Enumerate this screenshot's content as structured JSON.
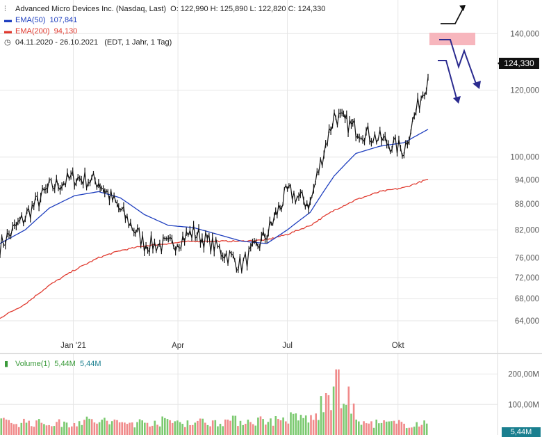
{
  "header": {
    "title": "Advanced Micro Devices Inc. (Nasdaq, Last)",
    "ohlc": "O: 122,990  H: 125,890  L: 122,820  C: 124,330",
    "ema50_label": "EMA(50)",
    "ema50_value": "107,841",
    "ema200_label": "EMA(200)",
    "ema200_value": "94,130",
    "range": "04.11.2020 - 26.10.2021",
    "range_note": "(EDT, 1 Jahr, 1 Tag)",
    "last_price": "124,330"
  },
  "volume_header": {
    "label": "Volume(1)",
    "value1": "5,44M",
    "value2": "5,44M",
    "last_tag": "5,44M"
  },
  "colors": {
    "price": "#111111",
    "ema50": "#1f3fbf",
    "ema200": "#e03a2f",
    "vol_up": "#7bc96f",
    "vol_down": "#f08a8a",
    "grid": "#e6e6e6",
    "arrow": "#2b2b8f",
    "zone": "#f7b6bd"
  },
  "chart_data": {
    "type": "line",
    "title": "Advanced Micro Devices Inc. (Nasdaq, Last)",
    "scale": "log",
    "x_tick_labels": [
      "Jan '21",
      "Apr",
      "Jul",
      "Okt"
    ],
    "y_tick_labels": [
      "140,000",
      "120,000",
      "100,000",
      "94,000",
      "88,000",
      "82,000",
      "76,000",
      "72,000",
      "68,000",
      "64,000"
    ],
    "y_ticks": [
      140,
      120,
      100,
      94,
      88,
      82,
      76,
      72,
      68,
      64
    ],
    "ylim": [
      61.5,
      148
    ],
    "x": [
      "2020-11-04",
      "2020-11-25",
      "2020-12-15",
      "2021-01-05",
      "2021-01-25",
      "2021-02-12",
      "2021-03-04",
      "2021-03-24",
      "2021-04-14",
      "2021-05-04",
      "2021-05-24",
      "2021-06-14",
      "2021-07-01",
      "2021-07-20",
      "2021-08-09",
      "2021-08-27",
      "2021-09-16",
      "2021-10-06",
      "2021-10-26"
    ],
    "series": [
      {
        "name": "Advanced Micro Devices Inc.",
        "values": [
          78.5,
          85.0,
          92.0,
          94.5,
          93.5,
          86.5,
          79.0,
          78.5,
          81.5,
          78.0,
          74.5,
          81.0,
          91.0,
          88.0,
          112.0,
          108.0,
          105.0,
          102.0,
          124.33
        ]
      },
      {
        "name": "EMA(50)",
        "values": [
          79.0,
          82.0,
          87.0,
          90.0,
          91.0,
          89.5,
          85.5,
          83.0,
          82.5,
          81.0,
          79.5,
          79.0,
          82.0,
          86.0,
          95.0,
          101.0,
          103.0,
          104.0,
          107.841
        ]
      },
      {
        "name": "EMA(200)",
        "values": [
          64.5,
          67.0,
          70.5,
          73.5,
          76.0,
          77.5,
          78.5,
          79.0,
          79.5,
          79.5,
          79.5,
          79.8,
          81.0,
          83.0,
          86.5,
          89.0,
          91.0,
          92.0,
          94.13
        ]
      }
    ],
    "volume": {
      "ylabel_ticks": [
        "200,00M",
        "100,00M"
      ],
      "tick_values": [
        200,
        100
      ],
      "unit": "M",
      "x": [
        "2020-11",
        "2020-12",
        "2021-01",
        "2021-02",
        "2021-03",
        "2021-04",
        "2021-05",
        "2021-06",
        "2021-07",
        "2021-08",
        "2021-09",
        "2021-10"
      ],
      "values": [
        42,
        38,
        45,
        40,
        44,
        42,
        46,
        48,
        55,
        110,
        38,
        36
      ],
      "peak": 215
    },
    "grid": true,
    "legend": "top-left"
  }
}
